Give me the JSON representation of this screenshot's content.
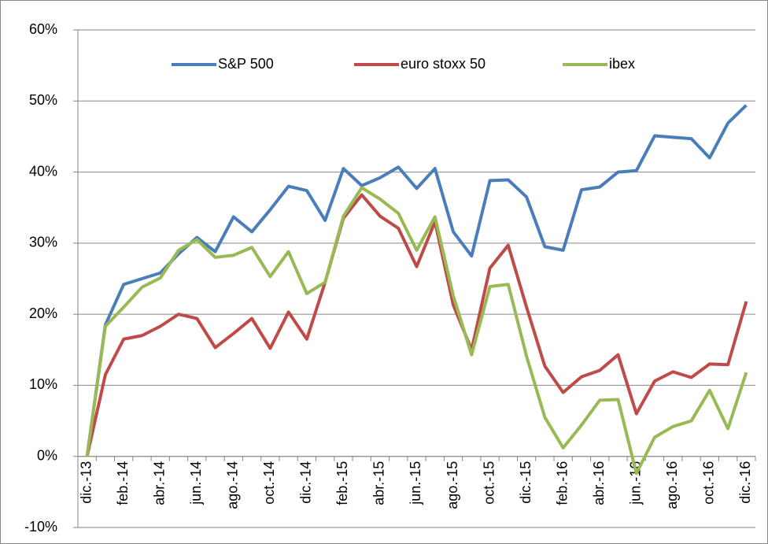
{
  "chart_data": {
    "type": "line",
    "categories": [
      "dic.-13",
      null,
      "feb.-14",
      null,
      "abr.-14",
      null,
      "jun.-14",
      null,
      "ago.-14",
      null,
      "oct.-14",
      null,
      "dic.-14",
      null,
      "feb.-15",
      null,
      "abr.-15",
      null,
      "jun.-15",
      null,
      "ago.-15",
      null,
      "oct.-15",
      null,
      "dic.-15",
      null,
      "feb.-16",
      null,
      "abr.-16",
      null,
      "jun.-16",
      null,
      "ago.-16",
      null,
      "oct.-16",
      null,
      "dic.-16"
    ],
    "series": [
      {
        "name": "S&P 500",
        "color": "#4a7ebb",
        "values": [
          0,
          18.5,
          24.2,
          25,
          25.8,
          28.5,
          30.8,
          28.8,
          33.7,
          31.6,
          34.7,
          38,
          37.4,
          33.2,
          40.5,
          38.1,
          39.2,
          40.7,
          37.7,
          40.5,
          31.6,
          28.2,
          38.8,
          38.9,
          36.5,
          29.5,
          29,
          37.5,
          37.9,
          40,
          40.2,
          45.1,
          44.9,
          44.7,
          42,
          46.9,
          49.4
        ]
      },
      {
        "name": "euro stoxx 50",
        "color": "#be4b48",
        "values": [
          0,
          11.5,
          16.5,
          17,
          18.3,
          20,
          19.4,
          15.3,
          17.3,
          19.4,
          15.2,
          20.3,
          16.5,
          24.5,
          33.5,
          36.8,
          33.8,
          32.1,
          26.7,
          33,
          21.3,
          15,
          26.5,
          29.7,
          21,
          12.7,
          9,
          11.2,
          12.1,
          14.3,
          6,
          10.6,
          11.9,
          11.1,
          13,
          12.9,
          21.8
        ]
      },
      {
        "name": "ibex",
        "color": "#98b954",
        "values": [
          0,
          18.3,
          21,
          23.8,
          25.1,
          29,
          30.5,
          28,
          28.3,
          29.4,
          25.3,
          28.8,
          22.9,
          24.5,
          33.8,
          37.8,
          36.2,
          34.2,
          29,
          33.7,
          22.6,
          14.3,
          23.9,
          24.2,
          14.1,
          5.5,
          1.2,
          4.4,
          7.9,
          8,
          -2.4,
          2.7,
          4.2,
          5,
          9.3,
          3.9,
          11.8
        ]
      }
    ],
    "ylim": [
      -10,
      60
    ],
    "yticks": [
      {
        "value": -10,
        "label": "-10%"
      },
      {
        "value": 0,
        "label": "0%"
      },
      {
        "value": 10,
        "label": "10%"
      },
      {
        "value": 20,
        "label": "20%"
      },
      {
        "value": 30,
        "label": "30%"
      },
      {
        "value": 40,
        "label": "40%"
      },
      {
        "value": 50,
        "label": "50%"
      },
      {
        "value": 60,
        "label": "60%"
      }
    ],
    "grid": true,
    "legend": "top"
  }
}
